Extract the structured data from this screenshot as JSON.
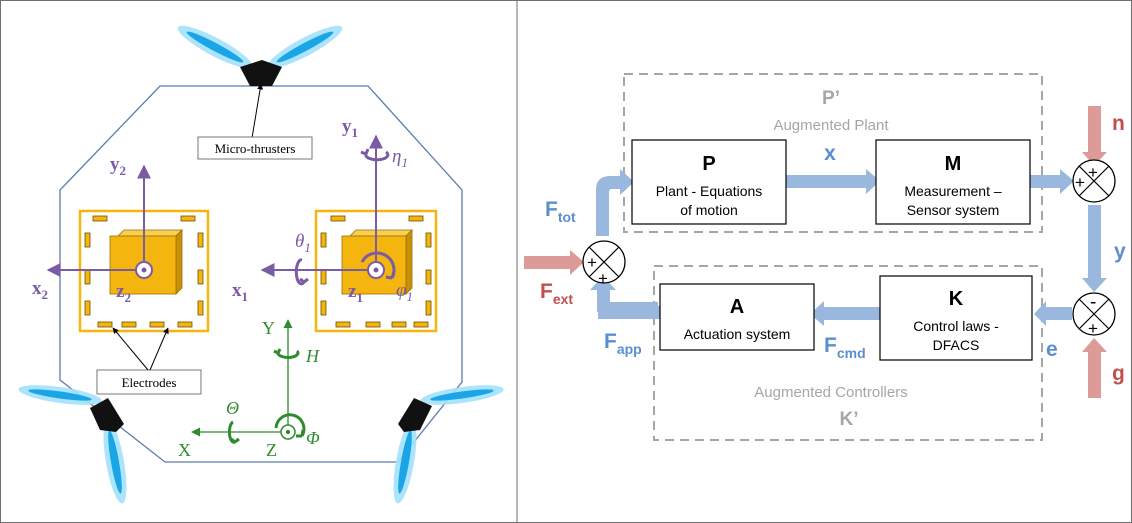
{
  "left_panel": {
    "callouts": {
      "thrusters": "Micro-thrusters",
      "electrodes": "Electrodes"
    },
    "tm2": {
      "y": "y",
      "y_sub": "2",
      "x": "x",
      "x_sub": "2",
      "z": "z",
      "z_sub": "2"
    },
    "tm1": {
      "y": "y",
      "y_sub": "1",
      "x": "x",
      "x_sub": "1",
      "z": "z",
      "z_sub": "1",
      "eta": "η",
      "eta_sub": "1",
      "theta": "θ",
      "theta_sub": "1",
      "phi": "φ",
      "phi_sub": "1"
    },
    "sc_frame": {
      "x": "X",
      "y": "Y",
      "z": "Z",
      "H": "H",
      "Theta": "Θ",
      "Phi": "Φ"
    }
  },
  "right_panel": {
    "boxes": {
      "P": {
        "letter": "P",
        "line1": "Plant - Equations",
        "line2": "of motion"
      },
      "M": {
        "letter": "M",
        "line1": "Measurement –",
        "line2": "Sensor system"
      },
      "A": {
        "letter": "A",
        "line1": "Actuation system"
      },
      "K": {
        "letter": "K",
        "line1": "Control laws -",
        "line2": "DFACS"
      }
    },
    "group_top": {
      "symbol": "P’",
      "label": "Augmented Plant"
    },
    "group_bottom": {
      "symbol": "K’",
      "label": "Augmented Controllers"
    },
    "signals": {
      "x": "x",
      "y": "y",
      "e": "e",
      "n": "n",
      "g": "g",
      "F_tot": {
        "base": "F",
        "sub": "tot"
      },
      "F_ext": {
        "base": "F",
        "sub": "ext"
      },
      "F_app": {
        "base": "F",
        "sub": "app"
      },
      "F_cmd": {
        "base": "F",
        "sub": "cmd"
      }
    },
    "summers": {
      "plus": "+",
      "minus": "-"
    }
  },
  "colors": {
    "purple": "#7b5aa6",
    "green": "#2e8b2e",
    "orange": "#f5b50f",
    "blue_arrow": "#9ab7dd",
    "red_arrow": "#dc9a98",
    "blue_text": "#5b8fcf",
    "red_text": "#c0504d",
    "dash_gray": "#a6a6a6",
    "outline_blue": "#5a7dab"
  }
}
